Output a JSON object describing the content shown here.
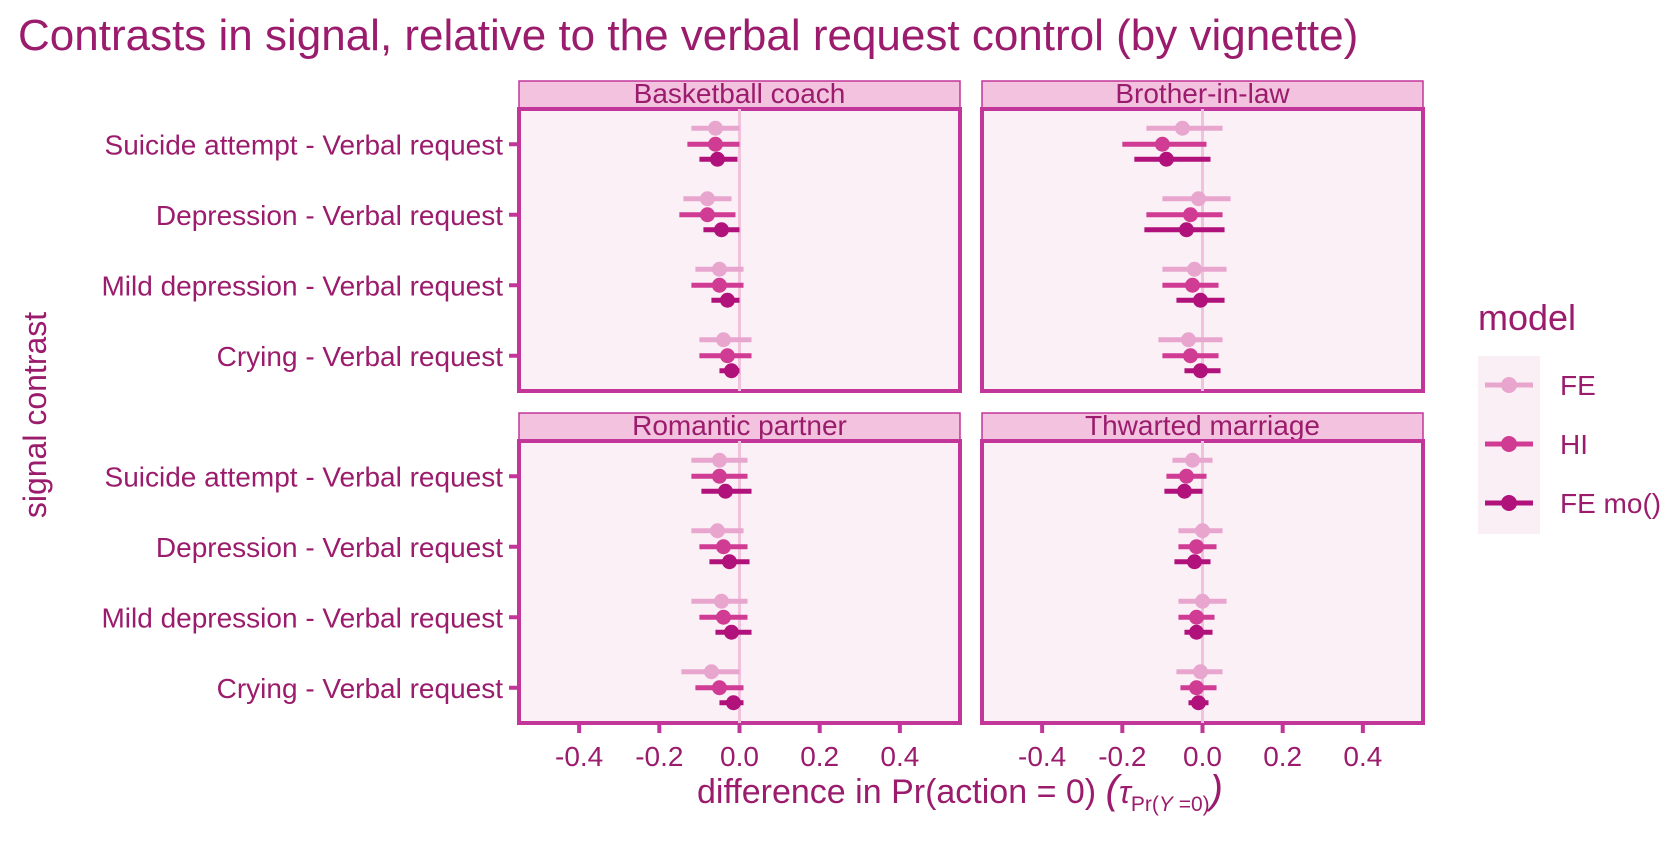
{
  "chart_data": {
    "type": "scatter",
    "title": "Contrasts in signal, relative to the verbal request control (by vignette)",
    "xlabel": "difference in Pr(action = 0)",
    "xlabel_math": {
      "tau": "τ",
      "sub": "Pr(",
      "y": "Y",
      "eq": " =0)"
    },
    "ylabel": "signal contrast",
    "xlim": [
      -0.55,
      0.55
    ],
    "x_ticks": [
      -0.4,
      -0.2,
      0.0,
      0.2,
      0.4
    ],
    "x_tick_labels": [
      "-0.4",
      "-0.2",
      "0.0",
      "0.2",
      "0.4"
    ],
    "reference_line_x": 0,
    "categories": [
      "Suicide attempt - Verbal request",
      "Depression - Verbal request",
      "Mild depression - Verbal request",
      "Crying - Verbal request"
    ],
    "legend": {
      "title": "model",
      "placement": "right",
      "entries": [
        {
          "name": "FE",
          "color": "#e8a6cf"
        },
        {
          "name": "HI",
          "color": "#d03b93"
        },
        {
          "name": "FE mo()",
          "color": "#b0117a"
        }
      ]
    },
    "panels": [
      {
        "title": "Basketball coach",
        "series": [
          {
            "name": "FE",
            "points": [
              [
                -0.06,
                -0.12,
                0.0
              ],
              [
                -0.08,
                -0.14,
                -0.02
              ],
              [
                -0.05,
                -0.11,
                0.01
              ],
              [
                -0.04,
                -0.1,
                0.03
              ]
            ]
          },
          {
            "name": "HI",
            "points": [
              [
                -0.06,
                -0.13,
                0.0
              ],
              [
                -0.08,
                -0.15,
                -0.01
              ],
              [
                -0.05,
                -0.12,
                0.01
              ],
              [
                -0.03,
                -0.1,
                0.03
              ]
            ]
          },
          {
            "name": "FE mo()",
            "points": [
              [
                -0.055,
                -0.1,
                -0.005
              ],
              [
                -0.045,
                -0.09,
                0.0
              ],
              [
                -0.03,
                -0.07,
                0.0
              ],
              [
                -0.02,
                -0.05,
                0.0
              ]
            ]
          }
        ]
      },
      {
        "title": "Brother-in-law",
        "series": [
          {
            "name": "FE",
            "points": [
              [
                -0.05,
                -0.14,
                0.05
              ],
              [
                -0.01,
                -0.1,
                0.07
              ],
              [
                -0.02,
                -0.1,
                0.06
              ],
              [
                -0.035,
                -0.11,
                0.05
              ]
            ]
          },
          {
            "name": "HI",
            "points": [
              [
                -0.1,
                -0.2,
                0.01
              ],
              [
                -0.03,
                -0.14,
                0.05
              ],
              [
                -0.025,
                -0.1,
                0.04
              ],
              [
                -0.03,
                -0.1,
                0.04
              ]
            ]
          },
          {
            "name": "FE mo()",
            "points": [
              [
                -0.09,
                -0.17,
                0.02
              ],
              [
                -0.04,
                -0.145,
                0.055
              ],
              [
                -0.005,
                -0.065,
                0.055
              ],
              [
                -0.005,
                -0.045,
                0.045
              ]
            ]
          }
        ]
      },
      {
        "title": "Romantic partner",
        "series": [
          {
            "name": "FE",
            "points": [
              [
                -0.05,
                -0.12,
                0.02
              ],
              [
                -0.055,
                -0.12,
                0.01
              ],
              [
                -0.045,
                -0.12,
                0.02
              ],
              [
                -0.07,
                -0.145,
                0.0
              ]
            ]
          },
          {
            "name": "HI",
            "points": [
              [
                -0.05,
                -0.12,
                0.02
              ],
              [
                -0.04,
                -0.1,
                0.02
              ],
              [
                -0.04,
                -0.1,
                0.02
              ],
              [
                -0.05,
                -0.11,
                0.01
              ]
            ]
          },
          {
            "name": "FE mo()",
            "points": [
              [
                -0.035,
                -0.095,
                0.03
              ],
              [
                -0.025,
                -0.075,
                0.025
              ],
              [
                -0.02,
                -0.06,
                0.03
              ],
              [
                -0.015,
                -0.05,
                0.01
              ]
            ]
          }
        ]
      },
      {
        "title": "Thwarted marriage",
        "series": [
          {
            "name": "FE",
            "points": [
              [
                -0.025,
                -0.075,
                0.025
              ],
              [
                0.0,
                -0.06,
                0.05
              ],
              [
                0.0,
                -0.06,
                0.06
              ],
              [
                -0.005,
                -0.065,
                0.05
              ]
            ]
          },
          {
            "name": "HI",
            "points": [
              [
                -0.04,
                -0.09,
                0.01
              ],
              [
                -0.015,
                -0.06,
                0.035
              ],
              [
                -0.015,
                -0.06,
                0.03
              ],
              [
                -0.015,
                -0.055,
                0.035
              ]
            ]
          },
          {
            "name": "FE mo()",
            "points": [
              [
                -0.045,
                -0.095,
                0.0
              ],
              [
                -0.02,
                -0.07,
                0.02
              ],
              [
                -0.015,
                -0.045,
                0.025
              ],
              [
                -0.01,
                -0.035,
                0.015
              ]
            ]
          }
        ]
      }
    ]
  }
}
